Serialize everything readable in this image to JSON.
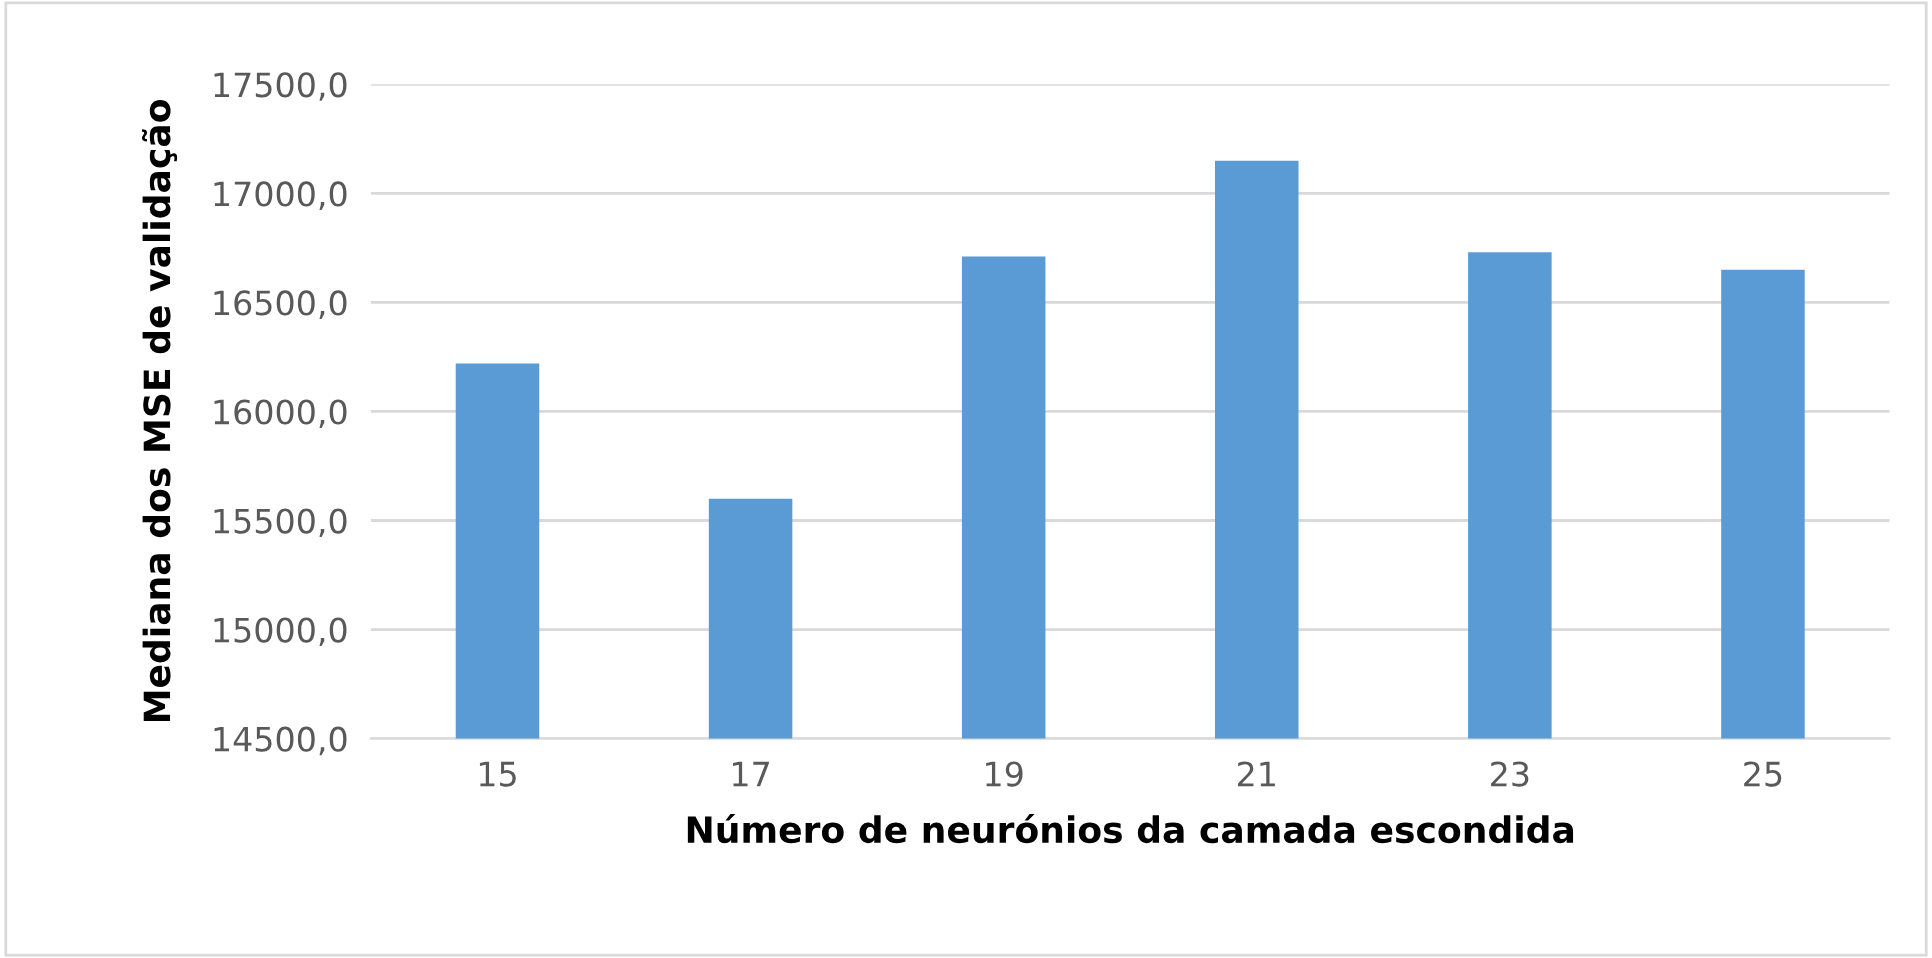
{
  "chart_data": {
    "type": "bar",
    "xlabel": "Número de neurónios da camada escondida",
    "ylabel": "Mediana dos MSE de validação",
    "categories": [
      "15",
      "17",
      "19",
      "21",
      "23",
      "25"
    ],
    "values": [
      16220,
      15600,
      16710,
      17150,
      16730,
      16650
    ],
    "color": "#5b9bd5",
    "ylim": [
      14500,
      17500
    ],
    "yticks": [
      {
        "value": 14500,
        "label": "14500,0"
      },
      {
        "value": 15000,
        "label": "15000,0"
      },
      {
        "value": 15500,
        "label": "15500,0"
      },
      {
        "value": 16000,
        "label": "16000,0"
      },
      {
        "value": 16500,
        "label": "16500,0"
      },
      {
        "value": 17000,
        "label": "17000,0"
      },
      {
        "value": 17500,
        "label": "17500,0"
      }
    ],
    "grid": "y",
    "legend": false
  }
}
